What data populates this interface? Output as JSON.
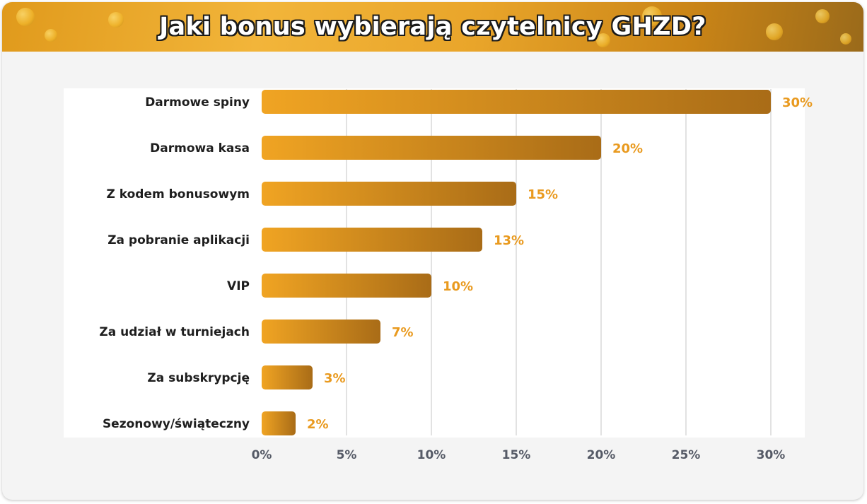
{
  "title": "Jaki bonus wybierają czytelnicy GHZD?",
  "colors": {
    "bar_start": "#f0a423",
    "bar_end": "#a96c17",
    "value_label": "#e99a1f",
    "category_label": "#1e1e1e",
    "tick_label": "#555a66",
    "grid": "#d9d9d9"
  },
  "chart_data": {
    "type": "bar",
    "orientation": "horizontal",
    "title": "Jaki bonus wybierają czytelnicy GHZD?",
    "categories": [
      "Darmowe spiny",
      "Darmowa kasa",
      "Z kodem bonusowym",
      "Za pobranie aplikacji",
      "VIP",
      "Za udział w turniejach",
      "Za subskrypcję",
      "Sezonowy/świąteczny"
    ],
    "values": [
      30,
      20,
      15,
      13,
      10,
      7,
      3,
      2
    ],
    "value_labels": [
      "30%",
      "20%",
      "15%",
      "13%",
      "10%",
      "7%",
      "3%",
      "2%"
    ],
    "xlim": [
      0,
      30
    ],
    "xticks": [
      0,
      5,
      10,
      15,
      20,
      25,
      30
    ],
    "xtick_labels": [
      "0%",
      "5%",
      "10%",
      "15%",
      "20%",
      "25%",
      "30%"
    ],
    "grid": true
  }
}
